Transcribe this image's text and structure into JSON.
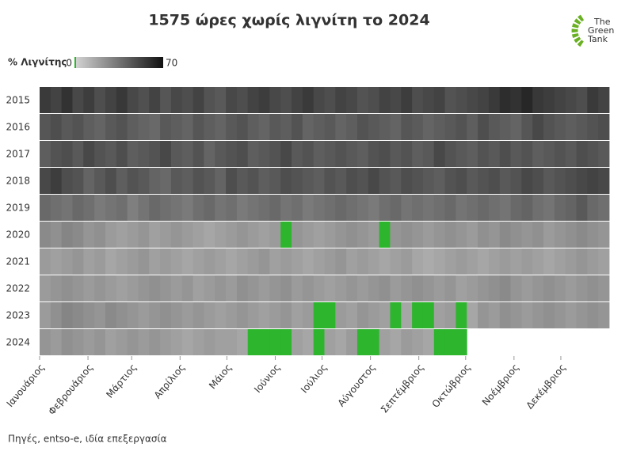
{
  "chart_data": {
    "type": "heatmap",
    "title": "1575 ώρες χωρίς λιγνίτη το 2024",
    "legend_title": "% Λιγνίτης",
    "colorbar": {
      "range": [
        0,
        70
      ],
      "zero_color": "#2db52d",
      "low_color": "#d2d2d2",
      "high_color": "#111111"
    },
    "rows": [
      "2015",
      "2016",
      "2017",
      "2018",
      "2019",
      "2020",
      "2021",
      "2022",
      "2023",
      "2024"
    ],
    "x_labels": [
      "Ιανουάριος",
      "Φεβρουάριος",
      "Μάρτιος",
      "Απρίλιος",
      "Μάιος",
      "Ιούνιος",
      "Ιούλιος",
      "Αύγουστος",
      "Σεπτέμβριος",
      "Οκτώβριος",
      "Νοέμβριος",
      "Δεκέμβριος"
    ],
    "values": [
      [
        55,
        52,
        58,
        50,
        54,
        48,
        52,
        56,
        50,
        47,
        52,
        45,
        50,
        48,
        52,
        46,
        44,
        50,
        48,
        52,
        54,
        50,
        48,
        52,
        55,
        50,
        48,
        52,
        50,
        46,
        48,
        52,
        50,
        54,
        48,
        50,
        52,
        46,
        48,
        50,
        52,
        55,
        60,
        58,
        62,
        56,
        54,
        52,
        50,
        48,
        55,
        52
      ],
      [
        45,
        48,
        44,
        46,
        42,
        40,
        44,
        46,
        42,
        40,
        38,
        44,
        42,
        40,
        45,
        42,
        40,
        44,
        46,
        42,
        40,
        44,
        42,
        46,
        40,
        42,
        44,
        40,
        42,
        46,
        44,
        42,
        40,
        45,
        43,
        40,
        42,
        44,
        46,
        42,
        48,
        44,
        42,
        40,
        45,
        50,
        46,
        44,
        42,
        44,
        46,
        48
      ],
      [
        42,
        46,
        48,
        44,
        50,
        46,
        44,
        48,
        42,
        44,
        46,
        50,
        44,
        42,
        46,
        40,
        44,
        46,
        48,
        42,
        44,
        46,
        50,
        44,
        46,
        42,
        44,
        46,
        44,
        42,
        46,
        48,
        44,
        46,
        42,
        44,
        50,
        46,
        44,
        42,
        46,
        44,
        48,
        44,
        46,
        42,
        44,
        46,
        44,
        48,
        46,
        44
      ],
      [
        50,
        54,
        48,
        46,
        40,
        44,
        48,
        42,
        46,
        44,
        40,
        38,
        44,
        42,
        46,
        44,
        40,
        48,
        44,
        46,
        42,
        44,
        48,
        46,
        44,
        42,
        46,
        44,
        48,
        46,
        50,
        46,
        44,
        48,
        46,
        44,
        42,
        46,
        48,
        44,
        46,
        48,
        44,
        46,
        50,
        48,
        44,
        46,
        48,
        50,
        52,
        50
      ],
      [
        38,
        36,
        34,
        38,
        36,
        32,
        34,
        36,
        30,
        34,
        38,
        36,
        34,
        32,
        36,
        38,
        34,
        36,
        32,
        34,
        36,
        38,
        34,
        36,
        32,
        34,
        36,
        38,
        36,
        34,
        32,
        36,
        38,
        34,
        36,
        34,
        36,
        38,
        34,
        36,
        38,
        36,
        34,
        38,
        40,
        36,
        34,
        38,
        40,
        44,
        38,
        36
      ],
      [
        26,
        24,
        28,
        26,
        22,
        24,
        20,
        18,
        20,
        22,
        18,
        20,
        22,
        20,
        18,
        16,
        18,
        20,
        22,
        20,
        18,
        20,
        0,
        22,
        20,
        18,
        20,
        22,
        24,
        22,
        20,
        0,
        22,
        24,
        22,
        20,
        22,
        24,
        22,
        20,
        24,
        22,
        26,
        24,
        22,
        24,
        20,
        22,
        24,
        26,
        24,
        22
      ],
      [
        20,
        18,
        20,
        22,
        18,
        20,
        16,
        18,
        20,
        22,
        18,
        20,
        18,
        16,
        18,
        20,
        18,
        16,
        18,
        20,
        22,
        18,
        20,
        18,
        16,
        18,
        20,
        22,
        18,
        20,
        18,
        16,
        18,
        20,
        16,
        14,
        16,
        18,
        20,
        18,
        16,
        18,
        20,
        18,
        20,
        18,
        16,
        18,
        20,
        22,
        20,
        18
      ],
      [
        20,
        22,
        24,
        22,
        20,
        22,
        20,
        18,
        20,
        22,
        24,
        22,
        20,
        22,
        18,
        20,
        22,
        20,
        24,
        22,
        20,
        22,
        24,
        20,
        22,
        20,
        18,
        20,
        22,
        20,
        22,
        24,
        20,
        22,
        24,
        22,
        20,
        22,
        18,
        20,
        22,
        24,
        26,
        22,
        20,
        22,
        24,
        22,
        20,
        22,
        24,
        22
      ],
      [
        20,
        24,
        28,
        26,
        24,
        22,
        26,
        24,
        22,
        20,
        22,
        24,
        22,
        20,
        22,
        20,
        18,
        20,
        22,
        20,
        18,
        20,
        22,
        18,
        20,
        0,
        0,
        20,
        18,
        22,
        20,
        18,
        0,
        16,
        0,
        0,
        18,
        20,
        0,
        16,
        22,
        20,
        24,
        22,
        20,
        22,
        24,
        22,
        20,
        22,
        24,
        22
      ],
      [
        22,
        20,
        24,
        22,
        20,
        22,
        18,
        20,
        22,
        20,
        22,
        20,
        18,
        16,
        18,
        20,
        18,
        18,
        16,
        0,
        0,
        0,
        0,
        18,
        16,
        0,
        18,
        16,
        20,
        0,
        0,
        18,
        16,
        20,
        18,
        16,
        0,
        0,
        0,
        null,
        null,
        null,
        null,
        null,
        null,
        null,
        null,
        null,
        null,
        null,
        null,
        null
      ]
    ],
    "source": "Πηγές, entso-e, ιδία επεξεργασία",
    "logo": [
      "The",
      "Green",
      "Tank"
    ]
  }
}
